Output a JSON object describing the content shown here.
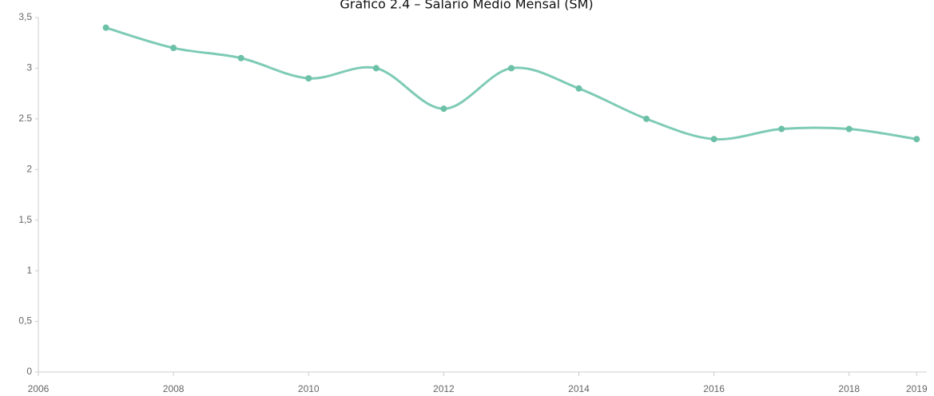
{
  "chart_data": {
    "type": "line",
    "title": "Gráfico 2.4 – Salário Médio Mensal (SM)",
    "x": [
      2007,
      2008,
      2009,
      2010,
      2011,
      2012,
      2013,
      2014,
      2015,
      2016,
      2017,
      2018,
      2019
    ],
    "values": [
      3.4,
      3.2,
      3.1,
      2.9,
      3.0,
      2.6,
      3.0,
      2.8,
      2.5,
      2.3,
      2.4,
      2.4,
      2.3
    ],
    "color": "#7ecbb5",
    "xlim": [
      2006,
      2019.15
    ],
    "xticks": [
      2006,
      2008,
      2010,
      2012,
      2014,
      2016,
      2018,
      2019
    ],
    "ylim": [
      0,
      3.5
    ],
    "yticks": [
      0,
      {
        "value": 0.5,
        "label": "0,5"
      },
      1,
      {
        "value": 1.5,
        "label": "1,5"
      },
      2,
      2.5,
      3,
      {
        "value": 3.5,
        "label": "3,5"
      }
    ],
    "grid": false
  }
}
